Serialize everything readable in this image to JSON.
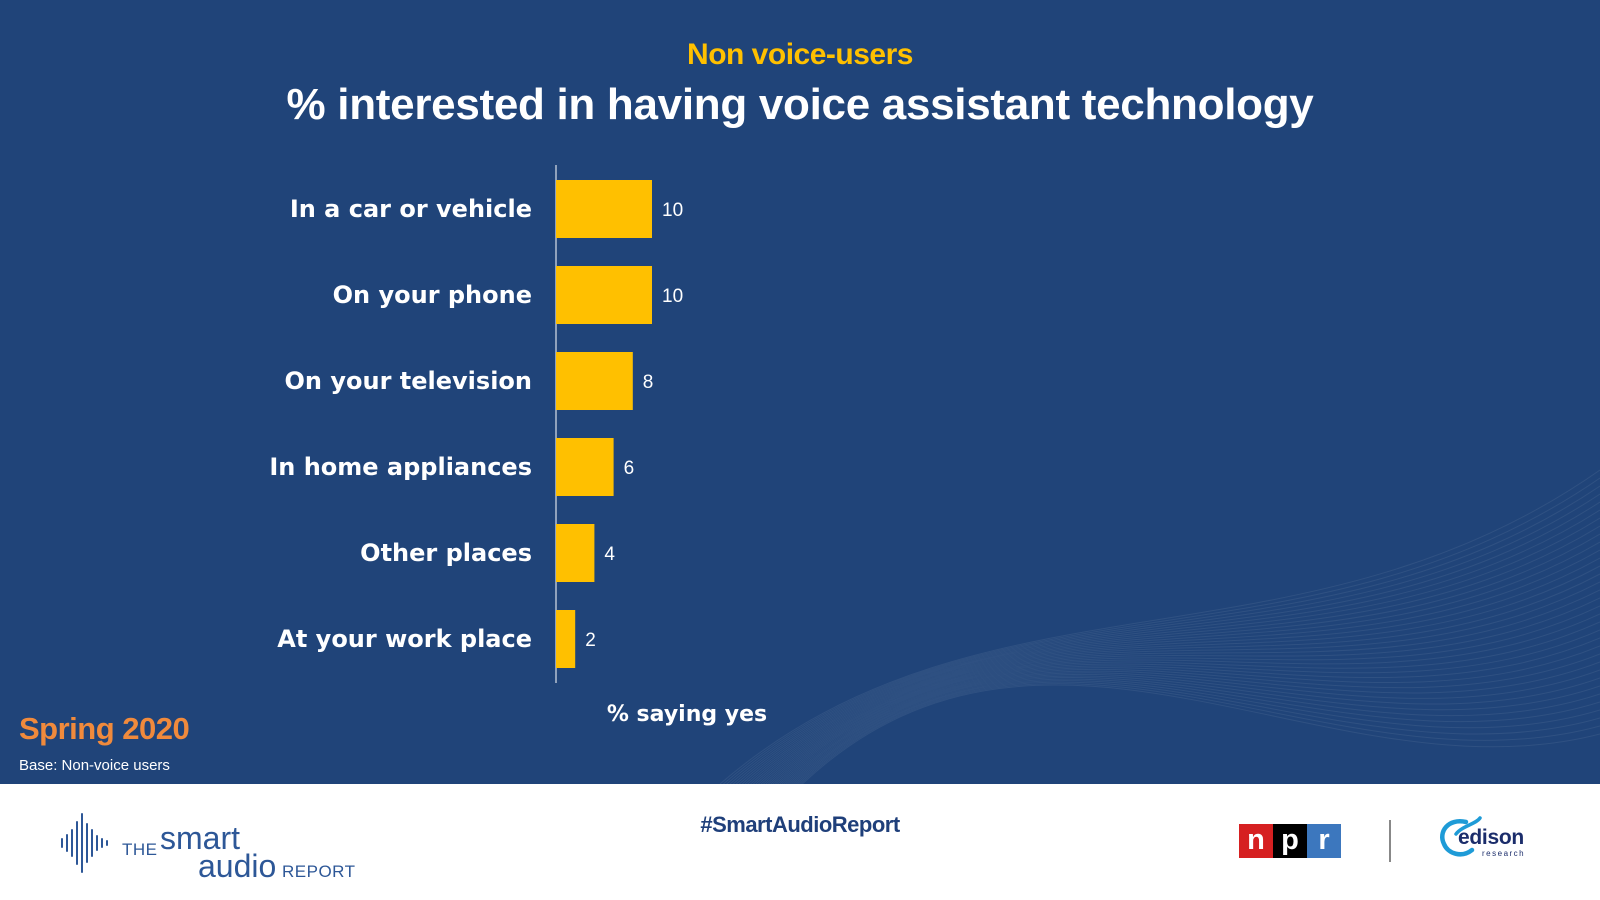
{
  "header": {
    "subtitle": "Non voice-users",
    "title": "% interested in having voice assistant technology"
  },
  "chart_data": {
    "type": "bar",
    "orientation": "horizontal",
    "categories": [
      "In a car or vehicle",
      "On your phone",
      "On your television",
      "In home appliances",
      "Other places",
      "At your work place"
    ],
    "values": [
      10,
      10,
      8,
      6,
      4,
      2
    ],
    "xlabel": "% saying yes",
    "bar_color": "#ffc000",
    "label_color": "#ffffff",
    "grid": false,
    "legend": "none"
  },
  "footnote": {
    "season": "Spring 2020",
    "base": "Base: Non-voice users"
  },
  "footer": {
    "brand": {
      "the": "THE",
      "smart": "smart",
      "audio": "audio",
      "report": "REPORT",
      "icon": "sound-wave-icon"
    },
    "hashtag": "#SmartAudioReport",
    "npr": [
      "n",
      "p",
      "r"
    ],
    "edison": {
      "name": "edison",
      "sub": "research"
    }
  },
  "colors": {
    "background": "#204479",
    "accent": "#ffc000",
    "season": "#f08a3c",
    "brand_blue": "#2d5797"
  }
}
